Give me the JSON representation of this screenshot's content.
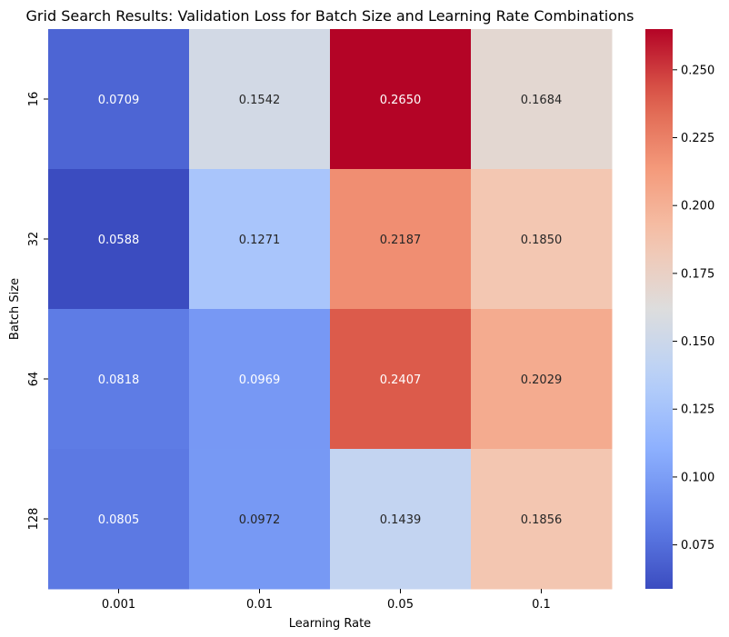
{
  "chart_data": {
    "type": "heatmap",
    "title": "Grid Search Results: Validation Loss for Batch Size and Learning Rate Combinations",
    "xlabel": "Learning Rate",
    "ylabel": "Batch Size",
    "x_categories": [
      "0.001",
      "0.01",
      "0.05",
      "0.1"
    ],
    "y_categories": [
      "16",
      "32",
      "64",
      "128"
    ],
    "values": [
      [
        0.0709,
        0.1542,
        0.265,
        0.1684
      ],
      [
        0.0588,
        0.1271,
        0.2187,
        0.185
      ],
      [
        0.0818,
        0.0969,
        0.2407,
        0.2029
      ],
      [
        0.0805,
        0.0972,
        0.1439,
        0.1856
      ]
    ],
    "value_labels": [
      [
        "0.0709",
        "0.1542",
        "0.2650",
        "0.1684"
      ],
      [
        "0.0588",
        "0.1271",
        "0.2187",
        "0.1850"
      ],
      [
        "0.0818",
        "0.0969",
        "0.2407",
        "0.2029"
      ],
      [
        "0.0805",
        "0.0972",
        "0.1439",
        "0.1856"
      ]
    ],
    "colormap": "coolwarm",
    "colorbar": {
      "vmin": 0.0588,
      "vmax": 0.265,
      "ticks": [
        0.075,
        0.1,
        0.125,
        0.15,
        0.175,
        0.2,
        0.225,
        0.25
      ],
      "tick_labels": [
        "0.075",
        "0.100",
        "0.125",
        "0.150",
        "0.175",
        "0.200",
        "0.225",
        "0.250"
      ]
    },
    "grid": false
  }
}
